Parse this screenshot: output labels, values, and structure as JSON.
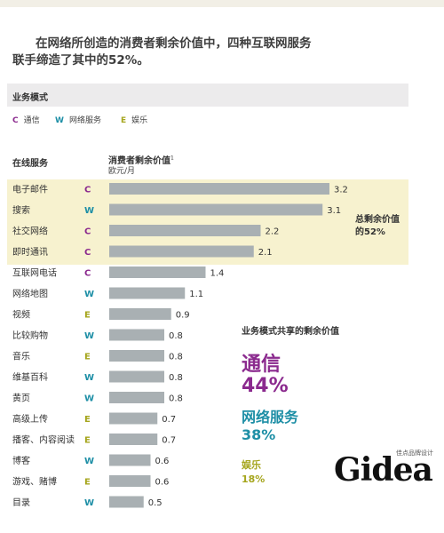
{
  "headline": {
    "line1": "在网络所创造的消费者剩余价值中，四种互联网服务",
    "line2": "联手缔造了其中的52%。"
  },
  "business_model": {
    "title": "业务模式",
    "legend": [
      {
        "code": "C",
        "label": "通信",
        "color": "#8b2a8e"
      },
      {
        "code": "W",
        "label": "网络服务",
        "color": "#1e8fa6"
      },
      {
        "code": "E",
        "label": "娱乐",
        "color": "#a5a51c"
      }
    ]
  },
  "columns": {
    "service": "在线服务",
    "surplus": "消费者剩余价值",
    "surplus_note": "1",
    "unit": "欧元/月"
  },
  "total_note": {
    "line1": "总剩余价值",
    "line2": "的52%"
  },
  "share": {
    "title": "业务模式共享的剩余价值",
    "items": [
      {
        "name": "通信",
        "pct": "44%",
        "color": "#8b2a8e"
      },
      {
        "name": "网络服务",
        "pct": "38%",
        "color": "#1e8fa6"
      },
      {
        "name": "娱乐",
        "pct": "18%",
        "color": "#a5a51c"
      }
    ]
  },
  "logo": {
    "text": "Gidea",
    "tagline": "佳点品牌设计"
  },
  "colors": {
    "bar": "#a9b0b3",
    "highlight": "#f7f2cf",
    "C": "#8b2a8e",
    "W": "#1e8fa6",
    "E": "#a5a51c"
  },
  "chart_data": {
    "type": "bar",
    "orientation": "horizontal",
    "ylabel": "在线服务",
    "xlabel": "消费者剩余价值 欧元/月",
    "xlim": [
      0,
      3.5
    ],
    "categories": [
      "电子邮件",
      "搜索",
      "社交网络",
      "即时通讯",
      "互联网电话",
      "网络地图",
      "视频",
      "比较购物",
      "音乐",
      "维基百科",
      "黄页",
      "高级上传",
      "播客、内容阅读",
      "博客",
      "游戏、赌博",
      "目录"
    ],
    "models": [
      "C",
      "W",
      "C",
      "C",
      "C",
      "W",
      "E",
      "W",
      "E",
      "W",
      "W",
      "E",
      "E",
      "W",
      "E",
      "W"
    ],
    "values": [
      3.2,
      3.1,
      2.2,
      2.1,
      1.4,
      1.1,
      0.9,
      0.8,
      0.8,
      0.8,
      0.8,
      0.7,
      0.7,
      0.6,
      0.6,
      0.5
    ],
    "value_labels": [
      "3.2",
      "3.1",
      "2.2",
      "2.1",
      "1.4",
      "1.1",
      "0.9",
      "0.8",
      "0.8",
      "0.8",
      "0.8",
      "0.7",
      "0.7",
      "0.6",
      "0.6",
      "0.5"
    ],
    "highlighted_top": 4
  }
}
